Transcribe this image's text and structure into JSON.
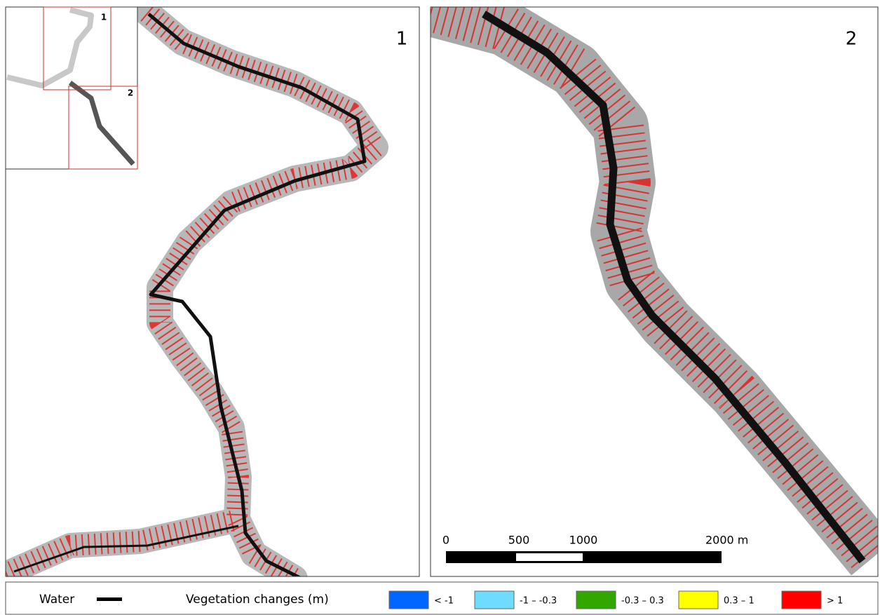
{
  "panels": [
    {
      "label": "1"
    },
    {
      "label": "2"
    }
  ],
  "inset": {
    "labels": [
      "1",
      "2"
    ]
  },
  "scale_bar": {
    "labels": [
      "0",
      "500",
      "1000",
      "2000 m"
    ]
  },
  "legend": {
    "water_label": "Water",
    "title": "Vegetation changes (m)",
    "items": [
      {
        "label": "< -1",
        "color": "#0066ff"
      },
      {
        "label": "-1 – -0.3",
        "color": "#6fdcff"
      },
      {
        "label": "-0.3 – 0.3",
        "color": "#33a600"
      },
      {
        "label": "0.3 – 1",
        "color": "#ffff00"
      },
      {
        "label": "> 1",
        "color": "#ff0000"
      }
    ]
  }
}
